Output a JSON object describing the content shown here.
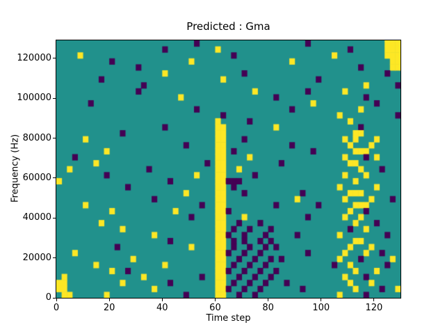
{
  "figure": {
    "title": "Predicted : Gma",
    "xlabel": "Time step",
    "ylabel": "Frequency (Hz)",
    "background": "#ffffff"
  },
  "axes": {
    "x_ticks": [
      0,
      20,
      40,
      60,
      80,
      100,
      120
    ],
    "y_ticks": [
      0,
      20000,
      40000,
      60000,
      80000,
      100000,
      120000
    ]
  },
  "chart_data": {
    "type": "heatmap",
    "title": "Predicted : Gma",
    "xlabel": "Time step",
    "ylabel": "Frequency (Hz)",
    "x_range": [
      0,
      130
    ],
    "y_range": [
      0,
      129000
    ],
    "legend": "none",
    "grid_lines": "off",
    "colormap": "viridis-3-level",
    "colors": {
      "mid": "#21918c",
      "high": "#fde725",
      "low": "#440154"
    },
    "encoding": {
      ".": "mid",
      "1": "high",
      "2": "low"
    },
    "grid": {
      "cols": 65,
      "rows": 43,
      "origin": "top-left",
      "col_step_time": 2,
      "row_step_hz": 3000,
      "rows_data": [
        "..........................2....................2..............111",
        "....................2.........1........................2......111",
        "....1............................2..................1.........111",
        "..........2..............1..................1..................11",
        "...............2.........................................2.....11",
        "....................1..............2..........................2..",
        "........2......................1.................2...............",
        "................2.........................................1.....2",
        "...............2.....................1.........2......1..........",
        ".......................1.................2................2......",
        "......2.........................................1...........2....",
        "..........................2.................2............1.......",
        "...............................2.....................1..........2",
        "..............................1.....2..................1.........",
        "....................2.........11.........1...............2.......",
        "............2.................11........................11.......",
        ".....1........................11...2..................1.1...1....",
        "........................2.....11............2..........1...1.....",
        ".........1....................11.2..............2.......111......",
        "...2..........................11....1.................1...2.1....",
        ".......1....................2.11..........2............11........",
        "..1..............2............11..1......................1...2...",
        ".........2................1...11.....2................1...1......",
        "1....................2........11222.....................1........",
        ".............2................11.2...................1......1....",
        "........................1.....11...2..........2........111.......",
        "..................2...........11.............1........1....1...2.",
        ".....1.....................2..11.........2.......2......111......",
        "..........1...........1.......112......................1..2......",
        ".........................2....11...1...........2......1..1.......",
        "........1.....................11..2...2.................1...2....",
        "............1.................11.2..2...2..............2..1......",
        "..................1...........112..2...2.....2.......1........2..",
        ".....................2........11.2.2..2.2...............11.......",
        "...........2.............1....11.2..2..2.2.............1...1.....",
        "...1..........................112..2..2........2......1...1..2...",
        "..............1...............11..2..2..2.2..........1...2.....1.",
        ".......1............1.........11.2..2..2............2..1......2..",
        "..........1..2................112..2..2..2..............1...1....",
        ".1..............1..........2..11..2..2..2.............1...2......",
        "11..........1........2........11.2..2..2...2...........1...1.....",
        "11................1...........112..2..2.......2.........1....2..1",
        ".11......1..............2.....11..2..2...............1....2......"
      ]
    }
  }
}
